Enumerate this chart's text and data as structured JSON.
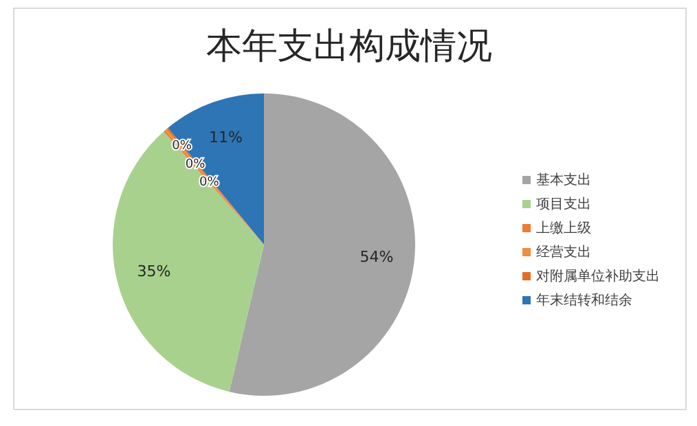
{
  "chart_data": {
    "type": "pie",
    "title": "本年支出构成情况",
    "categories": [
      "基本支出",
      "项目支出",
      "上缴上级",
      "经营支出",
      "对附属单位补助支出",
      "年末结转和结余"
    ],
    "values": [
      54,
      35,
      0.2,
      0.2,
      0.2,
      11
    ],
    "value_labels": [
      "54%",
      "35%",
      "0%",
      "0%",
      "0%",
      "11%"
    ],
    "colors": [
      "#a5a5a5",
      "#a9d18e",
      "#ed7d31",
      "#f28c40",
      "#e06f25",
      "#2e75b6"
    ],
    "legend": "right"
  }
}
